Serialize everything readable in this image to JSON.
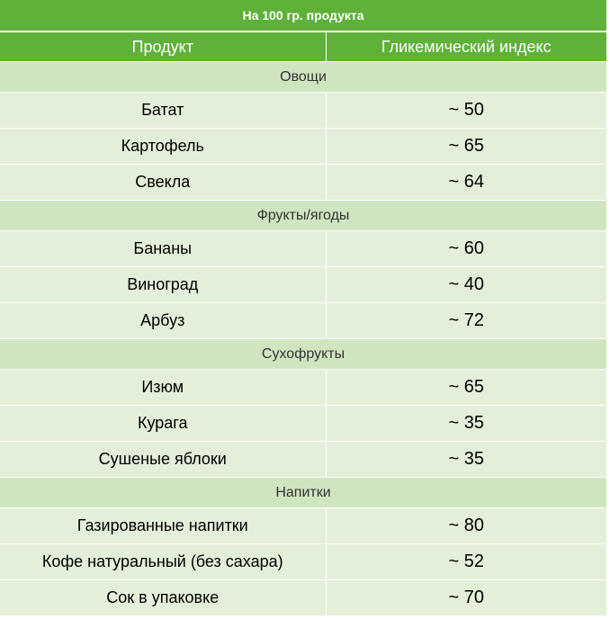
{
  "title": "На 100 гр. продукта",
  "headers": {
    "product": "Продукт",
    "gi": "Гликемический индекс"
  },
  "categories": [
    {
      "name": "Овощи",
      "items": [
        {
          "product": "Батат",
          "gi": "~ 50"
        },
        {
          "product": "Картофель",
          "gi": "~ 65"
        },
        {
          "product": "Свекла",
          "gi": "~ 64"
        }
      ]
    },
    {
      "name": "Фрукты/ягоды",
      "items": [
        {
          "product": "Бананы",
          "gi": "~ 60"
        },
        {
          "product": "Виноград",
          "gi": "~ 40"
        },
        {
          "product": "Арбуз",
          "gi": "~ 72"
        }
      ]
    },
    {
      "name": "Сухофрукты",
      "items": [
        {
          "product": "Изюм",
          "gi": "~ 65"
        },
        {
          "product": "Курага",
          "gi": "~ 35"
        },
        {
          "product": "Сушеные яблоки",
          "gi": "~ 35"
        }
      ]
    },
    {
      "name": "Напитки",
      "items": [
        {
          "product": "Газированные напитки",
          "gi": "~ 80"
        },
        {
          "product": "Кофе натуральный (без сахара)",
          "gi": "~ 52"
        },
        {
          "product": "Сок в упаковке",
          "gi": "~ 70"
        }
      ]
    }
  ],
  "colors": {
    "header": "#5fb13a",
    "category": "#cfe5c0",
    "row": "#e4efd9"
  }
}
